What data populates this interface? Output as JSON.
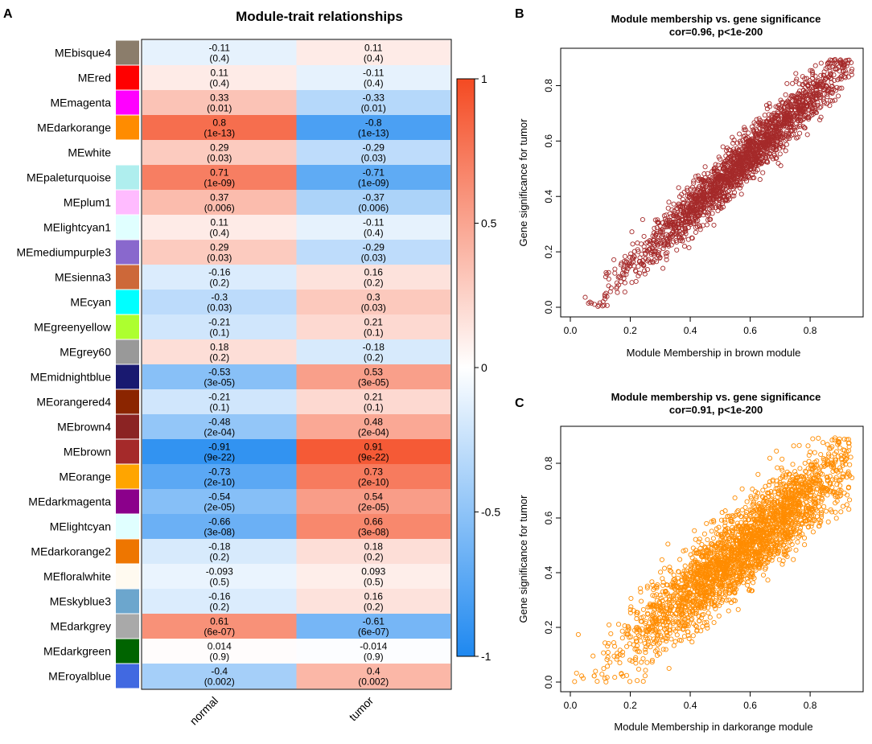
{
  "panels": {
    "a": "A",
    "b": "B",
    "c": "C"
  },
  "chart_data": [
    {
      "type": "heatmap",
      "panel": "A",
      "title": "Module-trait relationships",
      "columns": [
        "normal",
        "tumor"
      ],
      "colorbar": {
        "range": [
          -1,
          1
        ],
        "ticks": [
          "1",
          "0.5",
          "0",
          "-0.5",
          "-1"
        ],
        "colors": {
          "neg": "#1e88f0",
          "mid": "#ffffff",
          "pos": "#f44a22"
        }
      },
      "rows": [
        {
          "module": "MEbisque4",
          "swatch": "#8b7d6b",
          "normal": "-0.11",
          "normal_p": "(0.4)",
          "tumor": "0.11",
          "tumor_p": "(0.4)"
        },
        {
          "module": "MEred",
          "swatch": "#ff0000",
          "normal": "0.11",
          "normal_p": "(0.4)",
          "tumor": "-0.11",
          "tumor_p": "(0.4)"
        },
        {
          "module": "MEmagenta",
          "swatch": "#ff00ff",
          "normal": "0.33",
          "normal_p": "(0.01)",
          "tumor": "-0.33",
          "tumor_p": "(0.01)"
        },
        {
          "module": "MEdarkorange",
          "swatch": "#ff8c00",
          "normal": "0.8",
          "normal_p": "(1e-13)",
          "tumor": "-0.8",
          "tumor_p": "(1e-13)"
        },
        {
          "module": "MEwhite",
          "swatch": "#ffffff",
          "normal": "0.29",
          "normal_p": "(0.03)",
          "tumor": "-0.29",
          "tumor_p": "(0.03)"
        },
        {
          "module": "MEpaleturquoise",
          "swatch": "#afeeee",
          "normal": "0.71",
          "normal_p": "(1e-09)",
          "tumor": "-0.71",
          "tumor_p": "(1e-09)"
        },
        {
          "module": "MEplum1",
          "swatch": "#ffbbff",
          "normal": "0.37",
          "normal_p": "(0.006)",
          "tumor": "-0.37",
          "tumor_p": "(0.006)"
        },
        {
          "module": "MElightcyan1",
          "swatch": "#e0ffff",
          "normal": "0.11",
          "normal_p": "(0.4)",
          "tumor": "-0.11",
          "tumor_p": "(0.4)"
        },
        {
          "module": "MEmediumpurple3",
          "swatch": "#8968cd",
          "normal": "0.29",
          "normal_p": "(0.03)",
          "tumor": "-0.29",
          "tumor_p": "(0.03)"
        },
        {
          "module": "MEsienna3",
          "swatch": "#cd6839",
          "normal": "-0.16",
          "normal_p": "(0.2)",
          "tumor": "0.16",
          "tumor_p": "(0.2)"
        },
        {
          "module": "MEcyan",
          "swatch": "#00ffff",
          "normal": "-0.3",
          "normal_p": "(0.03)",
          "tumor": "0.3",
          "tumor_p": "(0.03)"
        },
        {
          "module": "MEgreenyellow",
          "swatch": "#adff2f",
          "normal": "-0.21",
          "normal_p": "(0.1)",
          "tumor": "0.21",
          "tumor_p": "(0.1)"
        },
        {
          "module": "MEgrey60",
          "swatch": "#999999",
          "normal": "0.18",
          "normal_p": "(0.2)",
          "tumor": "-0.18",
          "tumor_p": "(0.2)"
        },
        {
          "module": "MEmidnightblue",
          "swatch": "#191970",
          "normal": "-0.53",
          "normal_p": "(3e-05)",
          "tumor": "0.53",
          "tumor_p": "(3e-05)"
        },
        {
          "module": "MEorangered4",
          "swatch": "#8b2500",
          "normal": "-0.21",
          "normal_p": "(0.1)",
          "tumor": "0.21",
          "tumor_p": "(0.1)"
        },
        {
          "module": "MEbrown4",
          "swatch": "#8b2323",
          "normal": "-0.48",
          "normal_p": "(2e-04)",
          "tumor": "0.48",
          "tumor_p": "(2e-04)"
        },
        {
          "module": "MEbrown",
          "swatch": "#a52a2a",
          "normal": "-0.91",
          "normal_p": "(9e-22)",
          "tumor": "0.91",
          "tumor_p": "(9e-22)"
        },
        {
          "module": "MEorange",
          "swatch": "#ffa500",
          "normal": "-0.73",
          "normal_p": "(2e-10)",
          "tumor": "0.73",
          "tumor_p": "(2e-10)"
        },
        {
          "module": "MEdarkmagenta",
          "swatch": "#8b008b",
          "normal": "-0.54",
          "normal_p": "(2e-05)",
          "tumor": "0.54",
          "tumor_p": "(2e-05)"
        },
        {
          "module": "MElightcyan",
          "swatch": "#e0ffff",
          "normal": "-0.66",
          "normal_p": "(3e-08)",
          "tumor": "0.66",
          "tumor_p": "(3e-08)"
        },
        {
          "module": "MEdarkorange2",
          "swatch": "#ee7600",
          "normal": "-0.18",
          "normal_p": "(0.2)",
          "tumor": "0.18",
          "tumor_p": "(0.2)"
        },
        {
          "module": "MEfloralwhite",
          "swatch": "#fffaf0",
          "normal": "-0.093",
          "normal_p": "(0.5)",
          "tumor": "0.093",
          "tumor_p": "(0.5)"
        },
        {
          "module": "MEskyblue3",
          "swatch": "#6ca6cd",
          "normal": "-0.16",
          "normal_p": "(0.2)",
          "tumor": "0.16",
          "tumor_p": "(0.2)"
        },
        {
          "module": "MEdarkgrey",
          "swatch": "#a9a9a9",
          "normal": "0.61",
          "normal_p": "(6e-07)",
          "tumor": "-0.61",
          "tumor_p": "(6e-07)"
        },
        {
          "module": "MEdarkgreen",
          "swatch": "#006400",
          "normal": "0.014",
          "normal_p": "(0.9)",
          "tumor": "-0.014",
          "tumor_p": "(0.9)"
        },
        {
          "module": "MEroyalblue",
          "swatch": "#4169e1",
          "normal": "-0.4",
          "normal_p": "(0.002)",
          "tumor": "0.4",
          "tumor_p": "(0.002)"
        }
      ]
    },
    {
      "type": "scatter",
      "panel": "B",
      "title": "Module membership vs. gene significance",
      "subtitle": "cor=0.96, p<1e-200",
      "xlabel": "Module Membership in brown module",
      "ylabel": "Gene significance for tumor",
      "xlim": [
        0,
        0.95
      ],
      "ylim": [
        0,
        0.9
      ],
      "xticks": [
        0.0,
        0.2,
        0.4,
        0.6,
        0.8
      ],
      "yticks": [
        0.0,
        0.2,
        0.4,
        0.6,
        0.8
      ],
      "xtick_labels": [
        "0.0",
        "0.2",
        "0.4",
        "0.6",
        "0.8"
      ],
      "ytick_labels": [
        "0.0",
        "0.2",
        "0.4",
        "0.6",
        "0.8"
      ],
      "color": "#a52a2a",
      "n_points": 2000,
      "trend": {
        "slope": 1.02,
        "intercept": -0.06,
        "noise": 0.045,
        "x_range": [
          0.01,
          0.94
        ]
      }
    },
    {
      "type": "scatter",
      "panel": "C",
      "title": "Module membership vs. gene significance",
      "subtitle": "cor=0.91, p<1e-200",
      "xlabel": "Module Membership in darkorange module",
      "ylabel": "Gene significance for tumor",
      "xlim": [
        0,
        0.95
      ],
      "ylim": [
        0,
        0.9
      ],
      "xticks": [
        0.0,
        0.2,
        0.4,
        0.6,
        0.8
      ],
      "yticks": [
        0.0,
        0.2,
        0.4,
        0.6,
        0.8
      ],
      "xtick_labels": [
        "0.0",
        "0.2",
        "0.4",
        "0.6",
        "0.8"
      ],
      "ytick_labels": [
        "0.0",
        "0.2",
        "0.4",
        "0.6",
        "0.8"
      ],
      "color": "#ff8c00",
      "n_points": 2600,
      "trend": {
        "slope": 0.9,
        "intercept": -0.03,
        "noise": 0.075,
        "x_range": [
          0.01,
          0.94
        ]
      }
    }
  ]
}
